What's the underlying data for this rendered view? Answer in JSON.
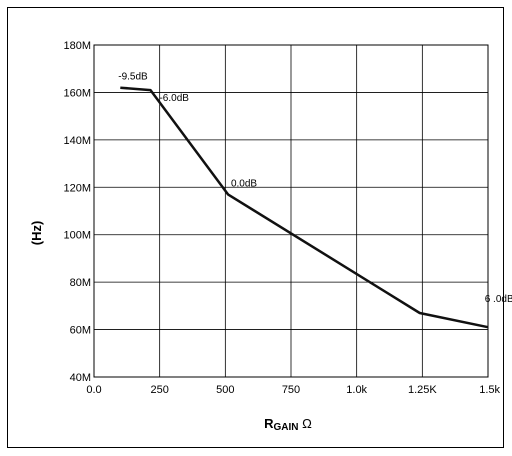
{
  "chart_data": {
    "type": "line",
    "title": "",
    "ylabel": "(Hz)",
    "xlabel": {
      "main": "R",
      "sub": "GAIN",
      "unit": " Ω"
    },
    "xlim": [
      0,
      1500
    ],
    "ylim": [
      40,
      180
    ],
    "x_ticks": [
      {
        "value": 0,
        "label": "0.0"
      },
      {
        "value": 250,
        "label": "250"
      },
      {
        "value": 500,
        "label": "500"
      },
      {
        "value": 750,
        "label": "750"
      },
      {
        "value": 1000,
        "label": "1.0k"
      },
      {
        "value": 1250,
        "label": "1.25K"
      },
      {
        "value": 1500,
        "label": "1.5k"
      }
    ],
    "y_ticks": [
      {
        "value": 40,
        "label": "40M"
      },
      {
        "value": 60,
        "label": "60M"
      },
      {
        "value": 80,
        "label": "80M"
      },
      {
        "value": 100,
        "label": "100M"
      },
      {
        "value": 120,
        "label": "120M"
      },
      {
        "value": 140,
        "label": "140M"
      },
      {
        "value": 160,
        "label": "160M"
      },
      {
        "value": 180,
        "label": "180M"
      }
    ],
    "grid": true,
    "series": [
      {
        "x": [
          100,
          215,
          510,
          1240,
          1500
        ],
        "y": [
          162,
          161,
          117,
          67,
          61
        ]
      }
    ],
    "annotations": [
      {
        "text": "-9.5dB",
        "x": 100,
        "y": 162
      },
      {
        "text": "-6.0dB",
        "x": 215,
        "y": 161
      },
      {
        "text": "0.0dB",
        "x": 510,
        "y": 117
      },
      {
        "text": "6 .0dB",
        "x": 1240,
        "y": 67
      }
    ]
  }
}
